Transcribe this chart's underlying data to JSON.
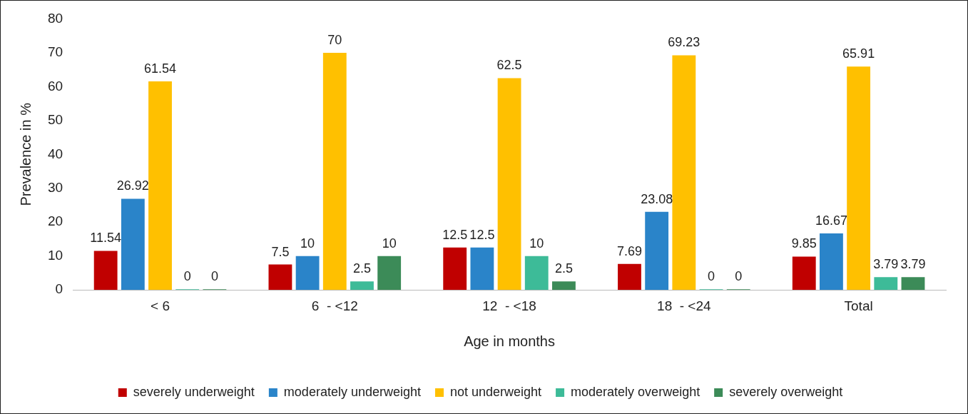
{
  "chart_data": {
    "type": "bar",
    "xlabel": "Age in months",
    "ylabel": "Prevalence in %",
    "categories": [
      "< 6",
      "6  - <12",
      "12  - <18",
      "18  - <24",
      "Total"
    ],
    "series": [
      {
        "name": "severely underweight",
        "color": "#c00000",
        "values": [
          11.54,
          7.5,
          12.5,
          7.69,
          9.85
        ]
      },
      {
        "name": "moderately underweight",
        "color": "#2a84c9",
        "values": [
          26.92,
          10,
          12.5,
          23.08,
          16.67
        ]
      },
      {
        "name": "not underweight",
        "color": "#ffc000",
        "values": [
          61.54,
          70,
          62.5,
          69.23,
          65.91
        ]
      },
      {
        "name": "moderately overweight",
        "color": "#3dbb98",
        "values": [
          0,
          2.5,
          10,
          0,
          3.79
        ]
      },
      {
        "name": "severely overweight",
        "color": "#3c8b58",
        "values": [
          0,
          10,
          2.5,
          0,
          3.79
        ]
      }
    ],
    "ylim": [
      0,
      80
    ],
    "yticks": [
      0,
      10,
      20,
      30,
      40,
      50,
      60,
      70,
      80
    ],
    "grid": false,
    "legend": "bottom",
    "data_labels": true
  }
}
